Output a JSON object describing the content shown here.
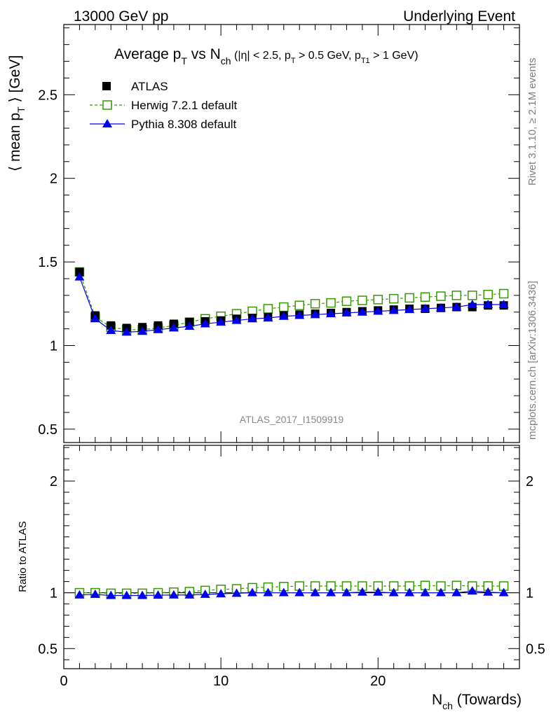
{
  "header": {
    "left": "13000 GeV pp",
    "right": "Underlying Event"
  },
  "side_labels": {
    "rivet": "Rivet 3.1.10, ≥ 2.1M events",
    "mcplots": "mcplots.cern.ch [arXiv:1306.3436]"
  },
  "chart_data": [
    {
      "type": "scatter",
      "panel": "main",
      "title_parts": {
        "prefix": "Average p",
        "p_sub": "T",
        "mid": " vs N",
        "n_sub": "ch",
        "cuts_a": " (|η| < 2.5, p",
        "cuts_b": " > 0.5 GeV, p",
        "cuts_c": " > 1 GeV)",
        "sub_T": "T",
        "sub_T1": "T1"
      },
      "ylabel_parts": {
        "a": "⟨ mean p",
        "sub": "T",
        "b": " ⟩ [GeV]"
      },
      "watermark": "ATLAS_2017_I1509919",
      "ylim": [
        0.42,
        2.92
      ],
      "yticks": [
        0.5,
        1,
        1.5,
        2,
        2.5
      ],
      "ytick_labels": [
        "0.5",
        "1",
        "1.5",
        "2",
        "2.5"
      ],
      "x": [
        1,
        2,
        3,
        4,
        5,
        6,
        7,
        8,
        9,
        10,
        11,
        12,
        13,
        14,
        15,
        16,
        17,
        18,
        19,
        20,
        21,
        22,
        23,
        24,
        25,
        26,
        27,
        28
      ],
      "series": [
        {
          "name": "ATLAS",
          "color": "#000000",
          "marker": "square-filled",
          "values": [
            1.44,
            1.18,
            1.12,
            1.105,
            1.11,
            1.12,
            1.13,
            1.14,
            1.145,
            1.15,
            1.16,
            1.165,
            1.17,
            1.18,
            1.185,
            1.19,
            1.195,
            1.2,
            1.205,
            1.21,
            1.215,
            1.22,
            1.22,
            1.225,
            1.23,
            1.23,
            1.24,
            1.24
          ]
        },
        {
          "name": "Herwig 7.2.1 default",
          "color": "#339900",
          "marker": "square-open",
          "dashed": true,
          "values": [
            1.44,
            1.17,
            1.11,
            1.095,
            1.095,
            1.105,
            1.12,
            1.14,
            1.16,
            1.175,
            1.19,
            1.205,
            1.22,
            1.23,
            1.24,
            1.25,
            1.255,
            1.265,
            1.27,
            1.275,
            1.28,
            1.285,
            1.29,
            1.295,
            1.3,
            1.3,
            1.305,
            1.31
          ]
        },
        {
          "name": "Pythia 8.308 default",
          "color": "#0000ee",
          "marker": "triangle-filled",
          "values": [
            1.41,
            1.16,
            1.09,
            1.08,
            1.085,
            1.095,
            1.105,
            1.115,
            1.13,
            1.14,
            1.15,
            1.16,
            1.165,
            1.175,
            1.18,
            1.185,
            1.19,
            1.195,
            1.2,
            1.205,
            1.21,
            1.215,
            1.22,
            1.225,
            1.23,
            1.245,
            1.245,
            1.245
          ]
        }
      ]
    },
    {
      "type": "scatter",
      "panel": "ratio",
      "ylabel": "Ratio to ATLAS",
      "ylim": [
        0.32,
        2.32
      ],
      "yticks": [
        0.5,
        1,
        2
      ],
      "ytick_labels": [
        "0.5",
        "1",
        "2"
      ],
      "xlim": [
        0,
        29
      ],
      "xticks": [
        0,
        10,
        20
      ],
      "xtick_labels": [
        "0",
        "10",
        "20"
      ],
      "xlabel_parts": {
        "a": "N",
        "sub": "ch",
        "b": " (Towards)"
      },
      "x": [
        1,
        2,
        3,
        4,
        5,
        6,
        7,
        8,
        9,
        10,
        11,
        12,
        13,
        14,
        15,
        16,
        17,
        18,
        19,
        20,
        21,
        22,
        23,
        24,
        25,
        26,
        27,
        28
      ],
      "series": [
        {
          "name": "Herwig 7.2.1 default",
          "color": "#339900",
          "marker": "square-open",
          "dashed": true,
          "values": [
            1.0,
            1.0,
            0.995,
            0.995,
            0.995,
            1.0,
            1.005,
            1.01,
            1.02,
            1.03,
            1.035,
            1.045,
            1.05,
            1.055,
            1.06,
            1.06,
            1.06,
            1.06,
            1.06,
            1.06,
            1.06,
            1.06,
            1.065,
            1.06,
            1.065,
            1.06,
            1.06,
            1.06
          ]
        },
        {
          "name": "Pythia 8.308 default",
          "color": "#0000ee",
          "marker": "triangle-filled",
          "values": [
            0.98,
            0.985,
            0.975,
            0.975,
            0.975,
            0.978,
            0.98,
            0.98,
            0.985,
            0.99,
            0.995,
            1.0,
            1.0,
            1.0,
            1.0,
            1.0,
            1.0,
            1.0,
            1.005,
            1.005,
            1.0,
            1.0,
            1.0,
            1.0,
            1.0,
            1.015,
            1.005,
            1.0
          ]
        }
      ]
    }
  ]
}
